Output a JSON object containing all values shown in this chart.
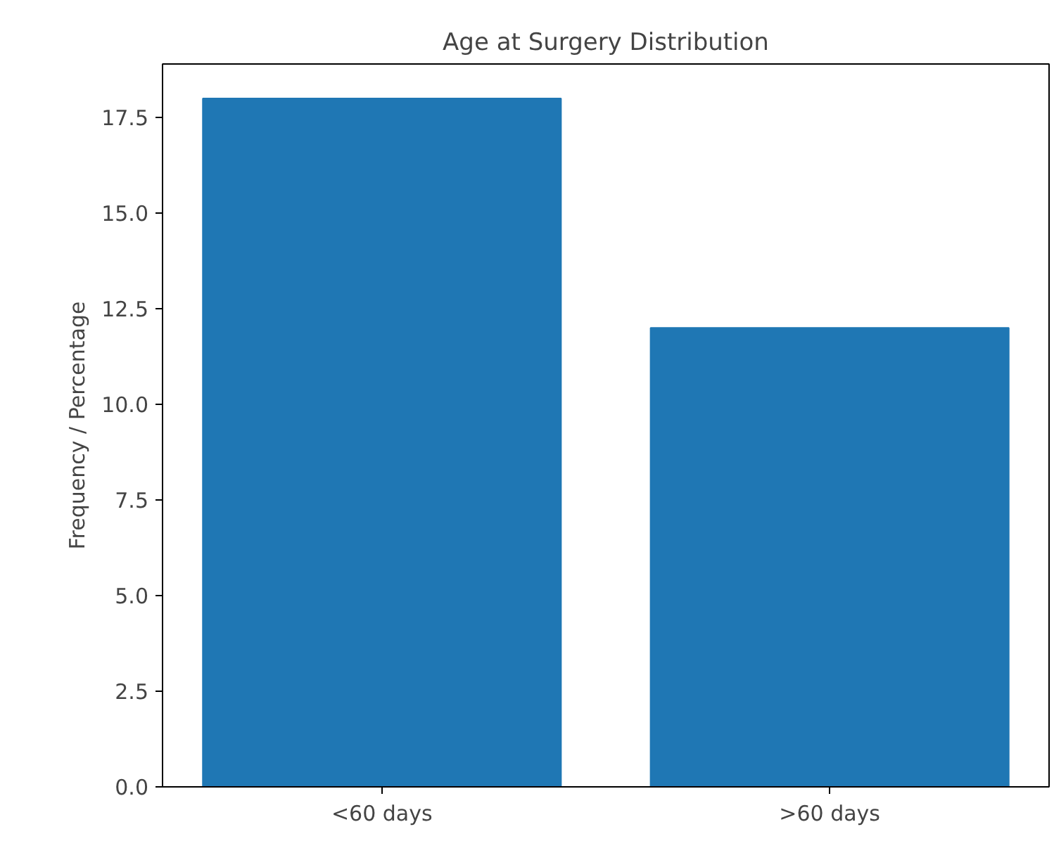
{
  "chart_data": {
    "type": "bar",
    "title": "Age at Surgery Distribution",
    "ylabel": "Frequency / Percentage",
    "categories": [
      "<60 days",
      ">60 days"
    ],
    "values": [
      18,
      12
    ],
    "color": "#1f77b4",
    "ylim": [
      0,
      18.9
    ],
    "yticks": [
      {
        "value": 0,
        "label": "0.0"
      },
      {
        "value": 2.5,
        "label": "2.5"
      },
      {
        "value": 5,
        "label": "5.0"
      },
      {
        "value": 7.5,
        "label": "7.5"
      },
      {
        "value": 10,
        "label": "10.0"
      },
      {
        "value": 12.5,
        "label": "12.5"
      },
      {
        "value": 15,
        "label": "15.0"
      },
      {
        "value": 17.5,
        "label": "17.5"
      }
    ],
    "grid": false
  }
}
